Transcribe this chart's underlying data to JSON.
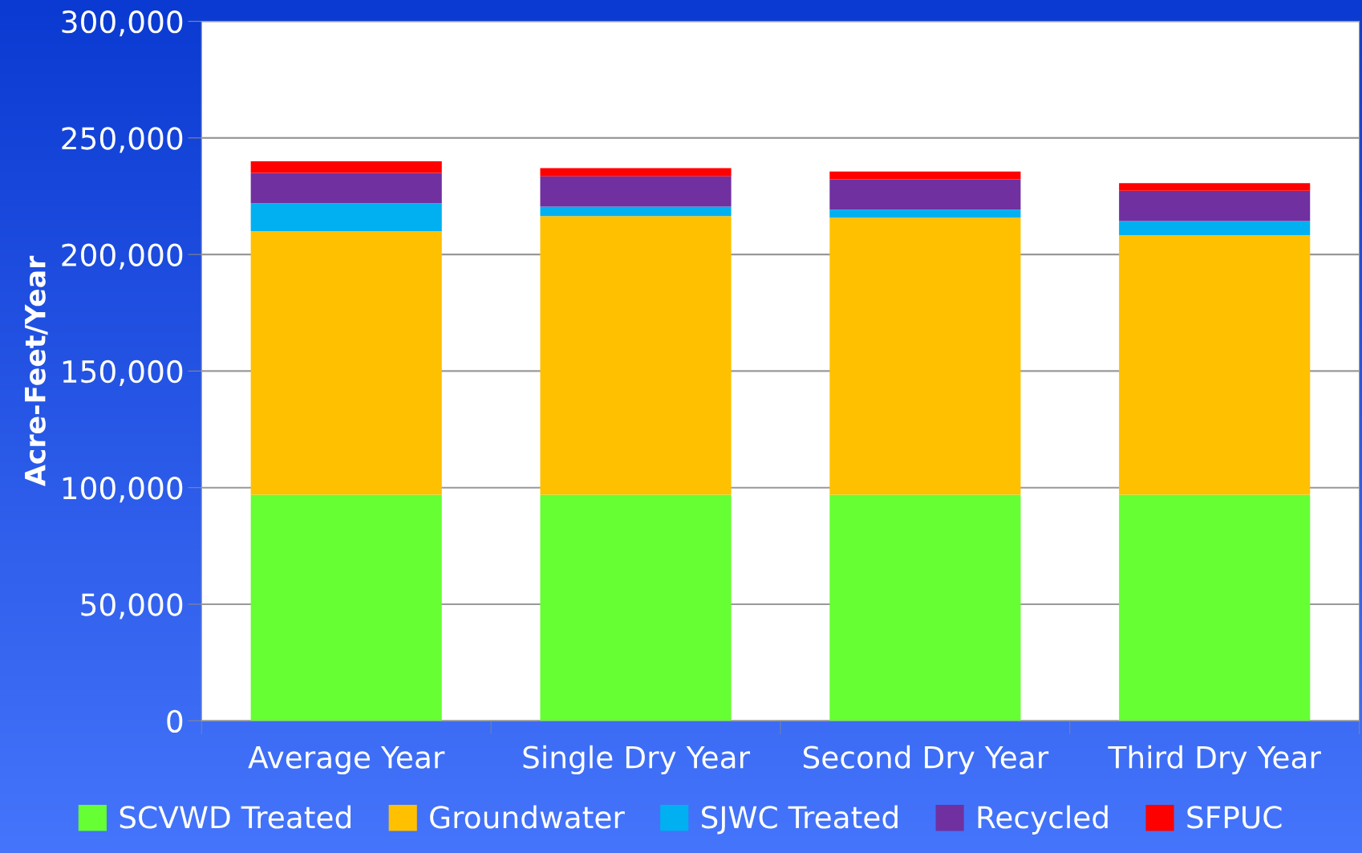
{
  "chart_data": {
    "type": "bar",
    "stacked": true,
    "ylabel": "Acre-Feet/Year",
    "categories": [
      "Average Year",
      "Single Dry Year",
      "Second Dry Year",
      "Third Dry Year"
    ],
    "series": [
      {
        "name": "SCVWD Treated",
        "color": "#66ff33",
        "values": [
          97000,
          97000,
          97000,
          97000
        ]
      },
      {
        "name": "Groundwater",
        "color": "#ffc000",
        "values": [
          113000,
          119500,
          118800,
          111300
        ]
      },
      {
        "name": "SJWC Treated",
        "color": "#00b0f0",
        "values": [
          12000,
          4000,
          3400,
          6000
        ]
      },
      {
        "name": "Recycled",
        "color": "#7030a0",
        "values": [
          13000,
          13000,
          13000,
          13000
        ]
      },
      {
        "name": "SFPUC",
        "color": "#ff0000",
        "values": [
          5000,
          3500,
          3400,
          3300
        ]
      }
    ],
    "ylim": [
      0,
      300000
    ],
    "yticks": [
      {
        "value": 0,
        "label": "0"
      },
      {
        "value": 50000,
        "label": "50,000"
      },
      {
        "value": 100000,
        "label": "100,000"
      },
      {
        "value": 150000,
        "label": "150,000"
      },
      {
        "value": 200000,
        "label": "200,000"
      },
      {
        "value": 250000,
        "label": "250,000"
      },
      {
        "value": 300000,
        "label": "300,000"
      }
    ],
    "grid": "y",
    "legend": "bottom"
  }
}
